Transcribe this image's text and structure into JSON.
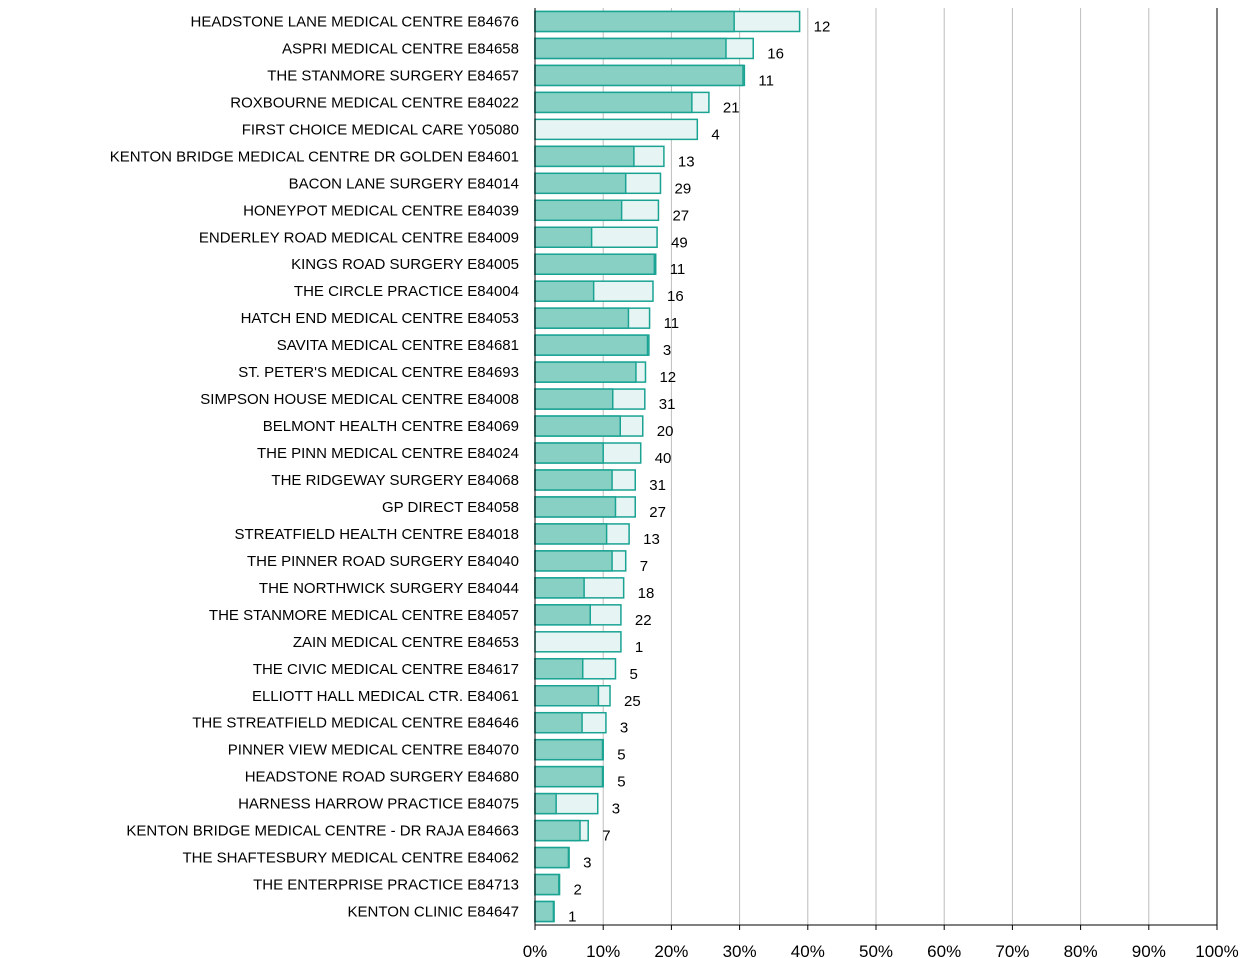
{
  "chart_data": {
    "type": "bar",
    "orientation": "horizontal",
    "title": "",
    "xlabel": "",
    "ylabel": "",
    "xlim": [
      0,
      100
    ],
    "x_unit": "%",
    "grid": true,
    "legend": "none",
    "colors": {
      "inner": "#88d0c4",
      "outer": "#e6f5f3",
      "stroke": "#1aa393",
      "grid": "#bdbdbd",
      "axis": "#000000"
    },
    "x_ticks": [
      "0%",
      "10%",
      "20%",
      "30%",
      "40%",
      "50%",
      "60%",
      "70%",
      "80%",
      "90%",
      "100%"
    ],
    "categories": [
      "HEADSTONE LANE MEDICAL CENTRE E84676",
      "ASPRI MEDICAL CENTRE E84658",
      "THE STANMORE SURGERY E84657",
      "ROXBOURNE MEDICAL CENTRE E84022",
      "FIRST CHOICE MEDICAL CARE Y05080",
      "KENTON BRIDGE MEDICAL CENTRE DR GOLDEN E84601",
      "BACON LANE SURGERY E84014",
      "HONEYPOT MEDICAL CENTRE E84039",
      "ENDERLEY ROAD MEDICAL CENTRE E84009",
      "KINGS ROAD SURGERY E84005",
      "THE CIRCLE PRACTICE E84004",
      "HATCH END MEDICAL CENTRE E84053",
      "SAVITA MEDICAL CENTRE E84681",
      "ST. PETER'S MEDICAL CENTRE E84693",
      "SIMPSON HOUSE MEDICAL CENTRE E84008",
      "BELMONT HEALTH CENTRE E84069",
      "THE PINN MEDICAL CENTRE E84024",
      "THE RIDGEWAY SURGERY E84068",
      "GP DIRECT E84058",
      "STREATFIELD HEALTH CENTRE E84018",
      "THE PINNER ROAD SURGERY E84040",
      "THE NORTHWICK SURGERY E84044",
      "THE STANMORE MEDICAL CENTRE E84057",
      "ZAIN MEDICAL CENTRE E84653",
      "THE CIVIC MEDICAL CENTRE E84617",
      "ELLIOTT HALL MEDICAL CTR. E84061",
      "THE STREATFIELD MEDICAL CENTRE E84646",
      "PINNER VIEW MEDICAL CENTRE E84070",
      "HEADSTONE ROAD SURGERY E84680",
      "HARNESS HARROW PRACTICE E84075",
      "KENTON BRIDGE MEDICAL CENTRE - DR RAJA E84663",
      "THE SHAFTESBURY MEDICAL CENTRE E84062",
      "THE ENTERPRISE PRACTICE E84713",
      "KENTON CLINIC E84647"
    ],
    "series": [
      {
        "values": [
          29.2,
          28.0,
          30.5,
          23.0,
          0,
          14.5,
          13.3,
          12.7,
          8.3,
          17.5,
          8.6,
          13.7,
          16.5,
          14.8,
          11.4,
          12.5,
          10.0,
          11.3,
          11.8,
          10.5,
          11.3,
          7.2,
          8.1,
          0,
          7.0,
          9.3,
          6.9,
          9.9,
          9.9,
          3.1,
          6.6,
          4.9,
          3.5,
          2.7
        ]
      },
      {
        "values": [
          38.8,
          32.0,
          30.7,
          25.5,
          23.8,
          18.9,
          18.4,
          18.1,
          17.9,
          17.7,
          17.3,
          16.8,
          16.7,
          16.2,
          16.1,
          15.8,
          15.5,
          14.7,
          14.7,
          13.8,
          13.3,
          13.0,
          12.6,
          12.6,
          11.8,
          11.0,
          10.4,
          10.0,
          10.0,
          9.2,
          7.8,
          5.0,
          3.6,
          2.8
        ]
      }
    ],
    "data_labels": [
      "12",
      "16",
      "11",
      "21",
      "4",
      "13",
      "29",
      "27",
      "49",
      "11",
      "16",
      "11",
      "3",
      "12",
      "31",
      "20",
      "40",
      "31",
      "27",
      "13",
      "7",
      "18",
      "22",
      "1",
      "5",
      "25",
      "3",
      "5",
      "5",
      "3",
      "7",
      "3",
      "2",
      "1"
    ]
  }
}
